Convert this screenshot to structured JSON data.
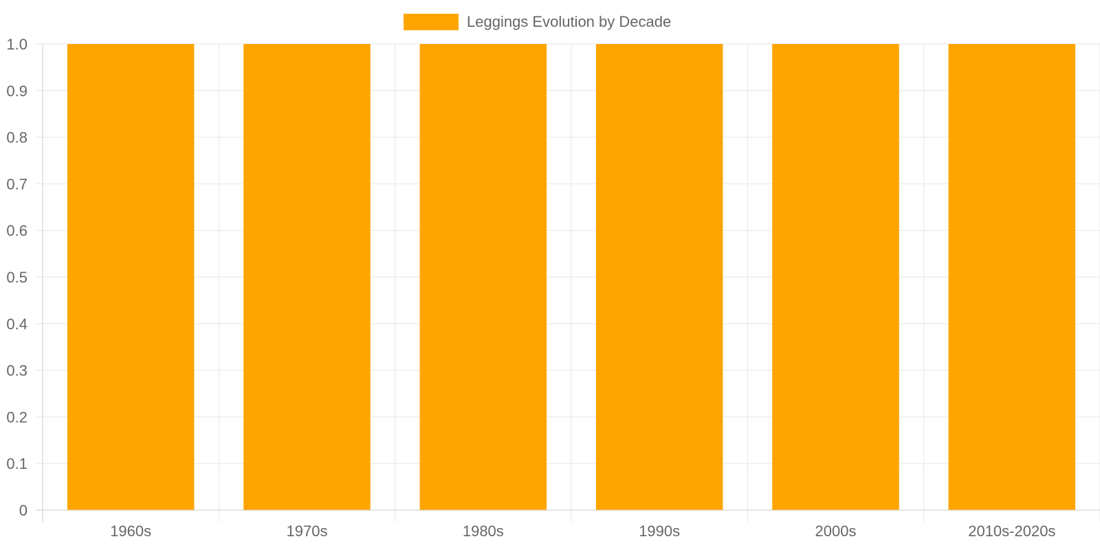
{
  "chart_data": {
    "type": "bar",
    "categories": [
      "1960s",
      "1970s",
      "1980s",
      "1990s",
      "2000s",
      "2010s-2020s"
    ],
    "series": [
      {
        "name": "Leggings Evolution by Decade",
        "values": [
          1,
          1,
          1,
          1,
          1,
          1
        ],
        "color": "#FFA500"
      }
    ],
    "ylim": [
      0,
      1
    ],
    "yticks": [
      "0",
      "0.1",
      "0.2",
      "0.3",
      "0.4",
      "0.5",
      "0.6",
      "0.7",
      "0.8",
      "0.9",
      "1.0"
    ],
    "grid": true,
    "legend_position": "top-center",
    "colors": {
      "grid": "#e6e6e6",
      "axis": "#cccccc",
      "text": "#666666"
    }
  }
}
